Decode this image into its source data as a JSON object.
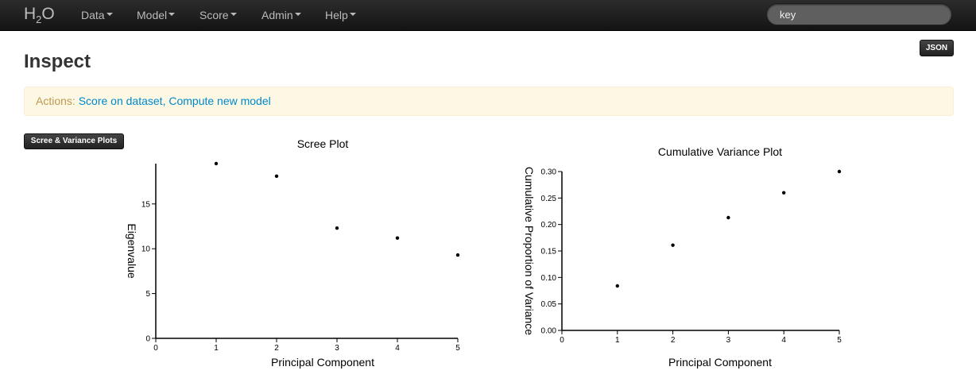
{
  "navbar": {
    "brand": {
      "main": "H",
      "sub": "2",
      "end": "O"
    },
    "items": [
      {
        "label": "Data"
      },
      {
        "label": "Model"
      },
      {
        "label": "Score"
      },
      {
        "label": "Admin"
      },
      {
        "label": "Help"
      }
    ],
    "search": {
      "value": "key"
    }
  },
  "header": {
    "title": "Inspect",
    "json_button": "JSON"
  },
  "actions": {
    "label": "Actions:",
    "links": [
      "Score on dataset",
      "Compute new model"
    ],
    "separator": ","
  },
  "plots_button": "Scree & Variance Plots",
  "chart_data": [
    {
      "type": "scatter",
      "title": "Scree Plot",
      "xlabel": "Principal Component",
      "ylabel": "Eigenvalue",
      "xlim": [
        0,
        5
      ],
      "ylim": [
        0,
        19.5
      ],
      "xticks": [
        0,
        1,
        2,
        3,
        4,
        5
      ],
      "yticks": [
        0,
        5,
        10,
        15
      ],
      "tick_format": "integer",
      "grid": false,
      "x": [
        1,
        2,
        3,
        4,
        5
      ],
      "y": [
        19.5,
        18.1,
        12.3,
        11.2,
        9.3
      ]
    },
    {
      "type": "scatter",
      "title": "Cumulative Variance Plot",
      "xlabel": "Principal Component",
      "ylabel": "Cumulative Proportion of Variance",
      "xlim": [
        0,
        5
      ],
      "ylim": [
        0,
        0.3
      ],
      "xticks": [
        0,
        1,
        2,
        3,
        4,
        5
      ],
      "yticks": [
        0,
        0.05,
        0.1,
        0.15,
        0.2,
        0.25,
        0.3
      ],
      "tick_format": "two-decimals",
      "grid": false,
      "x": [
        1,
        2,
        3,
        4,
        5
      ],
      "y": [
        0.084,
        0.161,
        0.213,
        0.26,
        0.3
      ]
    }
  ]
}
